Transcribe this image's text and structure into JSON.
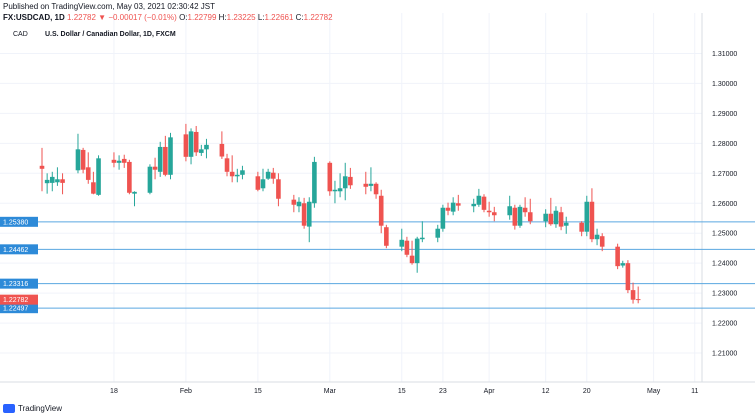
{
  "header": {
    "published": "Published on TradingView.com, May 03, 2021 02:30:42 JST",
    "symbol": "FX:USDCAD, 1D",
    "last": "1.22782",
    "change": "−0.00017 (−0.01%)",
    "o_label": "O:",
    "o_value": "1.22799",
    "h_label": "H:",
    "h_value": "1.23225",
    "l_label": "L:",
    "l_value": "1.22661",
    "c_label": "C:",
    "c_value": "1.22782"
  },
  "colors": {
    "up": "#26a69a",
    "down": "#ef5350",
    "level": "#5aa7e0",
    "level_badge": "#2d8ad8",
    "price_badge": "#ef5350"
  },
  "footer": {
    "brand": "TradingView"
  },
  "chart_data": {
    "type": "candlestick",
    "title": "U.S. Dollar / Canadian Dollar, 1D, FXCM",
    "currency": "CAD",
    "ylim": [
      1.205,
      1.3145
    ],
    "yticks": [
      "1.31000",
      "1.30000",
      "1.29000",
      "1.28000",
      "1.27000",
      "1.26000",
      "1.25000",
      "1.24000",
      "1.23000",
      "1.22000",
      "1.21000"
    ],
    "xticks": [
      {
        "label": "18",
        "date": "2021-01-18"
      },
      {
        "label": "Feb",
        "date": "2021-02-01"
      },
      {
        "label": "15",
        "date": "2021-02-15"
      },
      {
        "label": "Mar",
        "date": "2021-03-01"
      },
      {
        "label": "15",
        "date": "2021-03-15"
      },
      {
        "label": "23",
        "date": "2021-03-23"
      },
      {
        "label": "Apr",
        "date": "2021-04-01"
      },
      {
        "label": "12",
        "date": "2021-04-12"
      },
      {
        "label": "20",
        "date": "2021-04-20"
      },
      {
        "label": "May",
        "date": "2021-05-03"
      },
      {
        "label": "11",
        "date": "2021-05-11"
      }
    ],
    "x_range": [
      "2021-01-04",
      "2021-05-13"
    ],
    "levels": [
      {
        "label": "1.25380",
        "value": 1.2538
      },
      {
        "label": "1.24462",
        "value": 1.24462
      },
      {
        "label": "1.23316",
        "value": 1.23316
      },
      {
        "label": "1.22497",
        "value": 1.22497
      }
    ],
    "last_price": {
      "label": "1.22782",
      "value": 1.22782
    },
    "candles": [
      {
        "date": "2021-01-04",
        "o": 1.2725,
        "h": 1.2785,
        "l": 1.264,
        "c": 1.2715
      },
      {
        "date": "2021-01-05",
        "o": 1.2667,
        "h": 1.27,
        "l": 1.2632,
        "c": 1.2678
      },
      {
        "date": "2021-01-06",
        "o": 1.2668,
        "h": 1.2705,
        "l": 1.264,
        "c": 1.2688
      },
      {
        "date": "2021-01-07",
        "o": 1.267,
        "h": 1.272,
        "l": 1.2658,
        "c": 1.268
      },
      {
        "date": "2021-01-08",
        "o": 1.268,
        "h": 1.27,
        "l": 1.263,
        "c": 1.2668
      },
      {
        "date": "2021-01-11",
        "o": 1.271,
        "h": 1.2832,
        "l": 1.27,
        "c": 1.278
      },
      {
        "date": "2021-01-12",
        "o": 1.2778,
        "h": 1.2785,
        "l": 1.27,
        "c": 1.2712
      },
      {
        "date": "2021-01-13",
        "o": 1.272,
        "h": 1.277,
        "l": 1.2665,
        "c": 1.2678
      },
      {
        "date": "2021-01-14",
        "o": 1.267,
        "h": 1.2705,
        "l": 1.263,
        "c": 1.2632
      },
      {
        "date": "2021-01-15",
        "o": 1.2628,
        "h": 1.276,
        "l": 1.2625,
        "c": 1.275
      },
      {
        "date": "2021-01-18",
        "o": 1.2745,
        "h": 1.277,
        "l": 1.272,
        "c": 1.2735
      },
      {
        "date": "2021-01-19",
        "o": 1.2735,
        "h": 1.276,
        "l": 1.2712,
        "c": 1.2742
      },
      {
        "date": "2021-01-20",
        "o": 1.2748,
        "h": 1.2762,
        "l": 1.2718,
        "c": 1.2735
      },
      {
        "date": "2021-01-21",
        "o": 1.2738,
        "h": 1.2745,
        "l": 1.263,
        "c": 1.2635
      },
      {
        "date": "2021-01-22",
        "o": 1.2632,
        "h": 1.264,
        "l": 1.259,
        "c": 1.2638
      },
      {
        "date": "2021-01-25",
        "o": 1.2635,
        "h": 1.273,
        "l": 1.263,
        "c": 1.2722
      },
      {
        "date": "2021-01-26",
        "o": 1.2722,
        "h": 1.2752,
        "l": 1.268,
        "c": 1.2712
      },
      {
        "date": "2021-01-27",
        "o": 1.2705,
        "h": 1.2805,
        "l": 1.2688,
        "c": 1.2788
      },
      {
        "date": "2021-01-28",
        "o": 1.2788,
        "h": 1.2825,
        "l": 1.269,
        "c": 1.2695
      },
      {
        "date": "2021-01-29",
        "o": 1.2695,
        "h": 1.2835,
        "l": 1.268,
        "c": 1.282
      },
      {
        "date": "2021-02-01",
        "o": 1.283,
        "h": 1.2865,
        "l": 1.274,
        "c": 1.2755
      },
      {
        "date": "2021-02-02",
        "o": 1.2755,
        "h": 1.285,
        "l": 1.273,
        "c": 1.284
      },
      {
        "date": "2021-02-03",
        "o": 1.2838,
        "h": 1.2858,
        "l": 1.2758,
        "c": 1.277
      },
      {
        "date": "2021-02-04",
        "o": 1.2768,
        "h": 1.2795,
        "l": 1.2758,
        "c": 1.278
      },
      {
        "date": "2021-02-05",
        "o": 1.278,
        "h": 1.2815,
        "l": 1.275,
        "c": 1.2795
      },
      {
        "date": "2021-02-08",
        "o": 1.2798,
        "h": 1.284,
        "l": 1.2748,
        "c": 1.2756
      },
      {
        "date": "2021-02-09",
        "o": 1.275,
        "h": 1.2765,
        "l": 1.269,
        "c": 1.2705
      },
      {
        "date": "2021-02-10",
        "o": 1.2705,
        "h": 1.276,
        "l": 1.267,
        "c": 1.269
      },
      {
        "date": "2021-02-11",
        "o": 1.269,
        "h": 1.2715,
        "l": 1.267,
        "c": 1.2695
      },
      {
        "date": "2021-02-12",
        "o": 1.2695,
        "h": 1.2725,
        "l": 1.268,
        "c": 1.271
      },
      {
        "date": "2021-02-15",
        "o": 1.269,
        "h": 1.2705,
        "l": 1.264,
        "c": 1.2645
      },
      {
        "date": "2021-02-16",
        "o": 1.265,
        "h": 1.2715,
        "l": 1.264,
        "c": 1.268
      },
      {
        "date": "2021-02-17",
        "o": 1.2682,
        "h": 1.2715,
        "l": 1.2678,
        "c": 1.2705
      },
      {
        "date": "2021-02-18",
        "o": 1.2702,
        "h": 1.2718,
        "l": 1.2665,
        "c": 1.2682
      },
      {
        "date": "2021-02-19",
        "o": 1.268,
        "h": 1.27,
        "l": 1.259,
        "c": 1.2615
      },
      {
        "date": "2021-02-22",
        "o": 1.2612,
        "h": 1.2628,
        "l": 1.257,
        "c": 1.2595
      },
      {
        "date": "2021-02-23",
        "o": 1.259,
        "h": 1.262,
        "l": 1.257,
        "c": 1.2605
      },
      {
        "date": "2021-02-24",
        "o": 1.26,
        "h": 1.2618,
        "l": 1.2515,
        "c": 1.2525
      },
      {
        "date": "2021-02-25",
        "o": 1.2522,
        "h": 1.262,
        "l": 1.247,
        "c": 1.2605
      },
      {
        "date": "2021-02-26",
        "o": 1.26,
        "h": 1.2755,
        "l": 1.2585,
        "c": 1.2738
      },
      {
        "date": "2021-03-01",
        "o": 1.2735,
        "h": 1.274,
        "l": 1.2625,
        "c": 1.264
      },
      {
        "date": "2021-03-02",
        "o": 1.264,
        "h": 1.2675,
        "l": 1.26,
        "c": 1.2645
      },
      {
        "date": "2021-03-03",
        "o": 1.264,
        "h": 1.27,
        "l": 1.262,
        "c": 1.265
      },
      {
        "date": "2021-03-04",
        "o": 1.265,
        "h": 1.2735,
        "l": 1.261,
        "c": 1.269
      },
      {
        "date": "2021-03-05",
        "o": 1.2688,
        "h": 1.2718,
        "l": 1.2648,
        "c": 1.266
      },
      {
        "date": "2021-03-08",
        "o": 1.2665,
        "h": 1.2705,
        "l": 1.263,
        "c": 1.2655
      },
      {
        "date": "2021-03-09",
        "o": 1.2658,
        "h": 1.272,
        "l": 1.264,
        "c": 1.2665
      },
      {
        "date": "2021-03-10",
        "o": 1.2665,
        "h": 1.267,
        "l": 1.2615,
        "c": 1.263
      },
      {
        "date": "2021-03-11",
        "o": 1.2625,
        "h": 1.2645,
        "l": 1.25,
        "c": 1.2525
      },
      {
        "date": "2021-03-12",
        "o": 1.252,
        "h": 1.2528,
        "l": 1.245,
        "c": 1.2458
      },
      {
        "date": "2021-03-15",
        "o": 1.2455,
        "h": 1.2515,
        "l": 1.244,
        "c": 1.2478
      },
      {
        "date": "2021-03-16",
        "o": 1.2475,
        "h": 1.2488,
        "l": 1.242,
        "c": 1.2428
      },
      {
        "date": "2021-03-17",
        "o": 1.2425,
        "h": 1.2475,
        "l": 1.2395,
        "c": 1.24
      },
      {
        "date": "2021-03-18",
        "o": 1.24,
        "h": 1.2488,
        "l": 1.2368,
        "c": 1.2482
      },
      {
        "date": "2021-03-19",
        "o": 1.248,
        "h": 1.254,
        "l": 1.247,
        "c": 1.2485
      },
      {
        "date": "2021-03-22",
        "o": 1.2485,
        "h": 1.2528,
        "l": 1.247,
        "c": 1.2515
      },
      {
        "date": "2021-03-23",
        "o": 1.2515,
        "h": 1.2595,
        "l": 1.2505,
        "c": 1.2585
      },
      {
        "date": "2021-03-24",
        "o": 1.2585,
        "h": 1.2602,
        "l": 1.256,
        "c": 1.2575
      },
      {
        "date": "2021-03-25",
        "o": 1.2572,
        "h": 1.262,
        "l": 1.256,
        "c": 1.2602
      },
      {
        "date": "2021-03-26",
        "o": 1.26,
        "h": 1.2628,
        "l": 1.2575,
        "c": 1.2592
      },
      {
        "date": "2021-03-29",
        "o": 1.259,
        "h": 1.2615,
        "l": 1.257,
        "c": 1.2598
      },
      {
        "date": "2021-03-30",
        "o": 1.2595,
        "h": 1.2648,
        "l": 1.2588,
        "c": 1.2625
      },
      {
        "date": "2021-03-31",
        "o": 1.2622,
        "h": 1.263,
        "l": 1.257,
        "c": 1.2578
      },
      {
        "date": "2021-04-01",
        "o": 1.2575,
        "h": 1.2605,
        "l": 1.2555,
        "c": 1.257
      },
      {
        "date": "2021-04-02",
        "o": 1.257,
        "h": 1.2588,
        "l": 1.254,
        "c": 1.256
      },
      {
        "date": "2021-04-05",
        "o": 1.256,
        "h": 1.2625,
        "l": 1.2545,
        "c": 1.259
      },
      {
        "date": "2021-04-06",
        "o": 1.2585,
        "h": 1.2595,
        "l": 1.2512,
        "c": 1.2525
      },
      {
        "date": "2021-04-07",
        "o": 1.2525,
        "h": 1.2595,
        "l": 1.2518,
        "c": 1.2588
      },
      {
        "date": "2021-04-08",
        "o": 1.2585,
        "h": 1.262,
        "l": 1.2555,
        "c": 1.257
      },
      {
        "date": "2021-04-09",
        "o": 1.257,
        "h": 1.2615,
        "l": 1.253,
        "c": 1.254
      },
      {
        "date": "2021-04-12",
        "o": 1.254,
        "h": 1.258,
        "l": 1.252,
        "c": 1.2565
      },
      {
        "date": "2021-04-13",
        "o": 1.2565,
        "h": 1.2618,
        "l": 1.2525,
        "c": 1.253
      },
      {
        "date": "2021-04-14",
        "o": 1.253,
        "h": 1.259,
        "l": 1.2518,
        "c": 1.2575
      },
      {
        "date": "2021-04-15",
        "o": 1.257,
        "h": 1.2588,
        "l": 1.251,
        "c": 1.2522
      },
      {
        "date": "2021-04-16",
        "o": 1.2525,
        "h": 1.2555,
        "l": 1.2498,
        "c": 1.2535
      },
      {
        "date": "2021-04-19",
        "o": 1.2535,
        "h": 1.254,
        "l": 1.249,
        "c": 1.2505
      },
      {
        "date": "2021-04-20",
        "o": 1.2505,
        "h": 1.2625,
        "l": 1.249,
        "c": 1.2605
      },
      {
        "date": "2021-04-21",
        "o": 1.2605,
        "h": 1.265,
        "l": 1.247,
        "c": 1.248
      },
      {
        "date": "2021-04-22",
        "o": 1.248,
        "h": 1.2515,
        "l": 1.246,
        "c": 1.2495
      },
      {
        "date": "2021-04-23",
        "o": 1.249,
        "h": 1.25,
        "l": 1.244,
        "c": 1.2455
      },
      {
        "date": "2021-04-26",
        "o": 1.2455,
        "h": 1.2465,
        "l": 1.238,
        "c": 1.239
      },
      {
        "date": "2021-04-27",
        "o": 1.2392,
        "h": 1.2408,
        "l": 1.2385,
        "c": 1.24
      },
      {
        "date": "2021-04-28",
        "o": 1.24,
        "h": 1.241,
        "l": 1.23,
        "c": 1.231
      },
      {
        "date": "2021-04-29",
        "o": 1.231,
        "h": 1.2335,
        "l": 1.2265,
        "c": 1.2278
      },
      {
        "date": "2021-04-30",
        "o": 1.228,
        "h": 1.2322,
        "l": 1.2266,
        "c": 1.2278
      }
    ]
  }
}
